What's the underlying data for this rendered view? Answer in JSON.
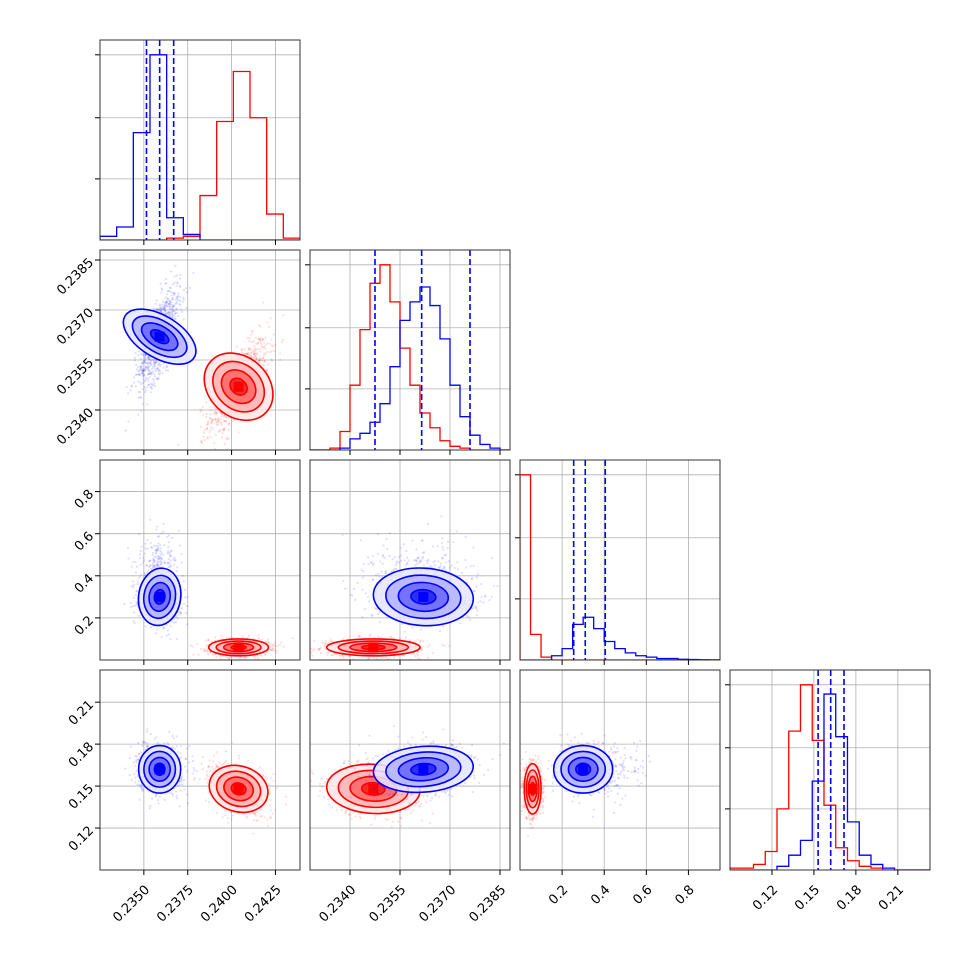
{
  "chart_data": {
    "type": "corner",
    "dimensions": 4,
    "title": "",
    "series": [
      {
        "color": "#0000ff",
        "means": [
          0.2359,
          0.2362,
          0.3,
          0.162
        ],
        "sds": [
          0.0006,
          0.00075,
          0.07,
          0.0085
        ],
        "quantiles_16_50_84": [
          [
            0.23515,
            0.2359,
            0.2367
          ],
          [
            0.23475,
            0.23615,
            0.2376
          ],
          [
            0.255,
            0.31,
            0.405
          ],
          [
            0.153,
            0.162,
            0.1715
          ]
        ]
      },
      {
        "color": "#ff0000",
        "means": [
          0.2404,
          0.2347,
          0.06,
          0.148
        ],
        "sds": [
          0.00085,
          0.0007,
          0.02,
          0.009
        ]
      }
    ],
    "histograms": [
      {
        "panel": "diag-0",
        "bin_edges": [
          0.2325,
          0.23345,
          0.2344,
          0.23535,
          0.2363,
          0.23725,
          0.2382,
          0.23915,
          0.2401,
          0.24105,
          0.242,
          0.24295,
          0.2439
        ],
        "blue": [
          2,
          7,
          58,
          100,
          12,
          3,
          0,
          0,
          0,
          0,
          0,
          0
        ],
        "red": [
          0,
          0,
          0,
          0,
          1,
          2,
          24,
          64,
          91,
          66,
          14,
          1
        ]
      },
      {
        "panel": "diag-1",
        "bin_edges": [
          0.2328,
          0.2331,
          0.2334,
          0.2337,
          0.234,
          0.2343,
          0.2346,
          0.2349,
          0.2352,
          0.2355,
          0.2358,
          0.2361,
          0.2364,
          0.2367,
          0.237,
          0.2373,
          0.2376,
          0.2379,
          0.2382,
          0.2385,
          0.2388
        ],
        "blue": [
          0,
          0,
          0,
          1,
          6,
          9,
          15,
          25,
          45,
          70,
          80,
          88,
          78,
          60,
          35,
          18,
          8,
          3,
          1,
          0
        ],
        "red": [
          0,
          0,
          1,
          10,
          35,
          65,
          90,
          100,
          80,
          55,
          35,
          20,
          12,
          5,
          2,
          1,
          0,
          0,
          0,
          0
        ]
      },
      {
        "panel": "diag-2",
        "bin_edges": [
          0.0,
          0.05,
          0.1,
          0.15,
          0.2,
          0.25,
          0.3,
          0.35,
          0.4,
          0.45,
          0.5,
          0.55,
          0.6,
          0.65,
          0.7,
          0.75,
          0.8,
          0.85,
          0.9,
          0.95
        ],
        "blue": [
          0,
          0,
          0,
          3,
          8,
          25,
          30,
          22,
          13,
          8,
          5,
          3,
          2,
          1,
          1,
          0.5,
          0.3,
          0.2,
          0.1
        ],
        "red": [
          130,
          18,
          2,
          0,
          0,
          0,
          0,
          0,
          0,
          0,
          0,
          0,
          0,
          0,
          0,
          0,
          0,
          0,
          0
        ]
      },
      {
        "panel": "diag-3",
        "bin_edges": [
          0.09,
          0.0984,
          0.1068,
          0.1152,
          0.1236,
          0.132,
          0.1404,
          0.1488,
          0.1572,
          0.1656,
          0.174,
          0.1824,
          0.1908,
          0.1992,
          0.2076,
          0.216,
          0.2244,
          0.2328
        ],
        "blue": [
          0,
          0,
          0,
          0,
          2,
          8,
          16,
          48,
          95,
          72,
          26,
          8,
          3,
          1,
          0,
          0,
          0
        ],
        "red": [
          1,
          1,
          3,
          10,
          33,
          75,
          100,
          70,
          35,
          12,
          5,
          2,
          1,
          0,
          0,
          0,
          0
        ]
      }
    ],
    "ranges": [
      [
        0.2325,
        0.2439
      ],
      [
        0.2328,
        0.2388
      ],
      [
        0.0,
        0.95
      ],
      [
        0.09,
        0.233
      ]
    ],
    "ticks": [
      [
        0.235,
        0.2375,
        0.24,
        0.2425
      ],
      [
        0.234,
        0.2355,
        0.237,
        0.2385
      ],
      [
        0.2,
        0.4,
        0.6,
        0.8
      ],
      [
        0.12,
        0.15,
        0.18,
        0.21
      ]
    ],
    "tick_labels": [
      [
        "0.2350",
        "0.2375",
        "0.2400",
        "0.2425"
      ],
      [
        "0.2340",
        "0.2355",
        "0.2370",
        "0.2385"
      ],
      [
        "0.2",
        "0.4",
        "0.6",
        "0.8"
      ],
      [
        "0.12",
        "0.15",
        "0.18",
        "0.21"
      ]
    ],
    "contour_levels_sigma": [
      0.5,
      1.0,
      1.5,
      2.0
    ],
    "grid": true,
    "legend": "none"
  }
}
